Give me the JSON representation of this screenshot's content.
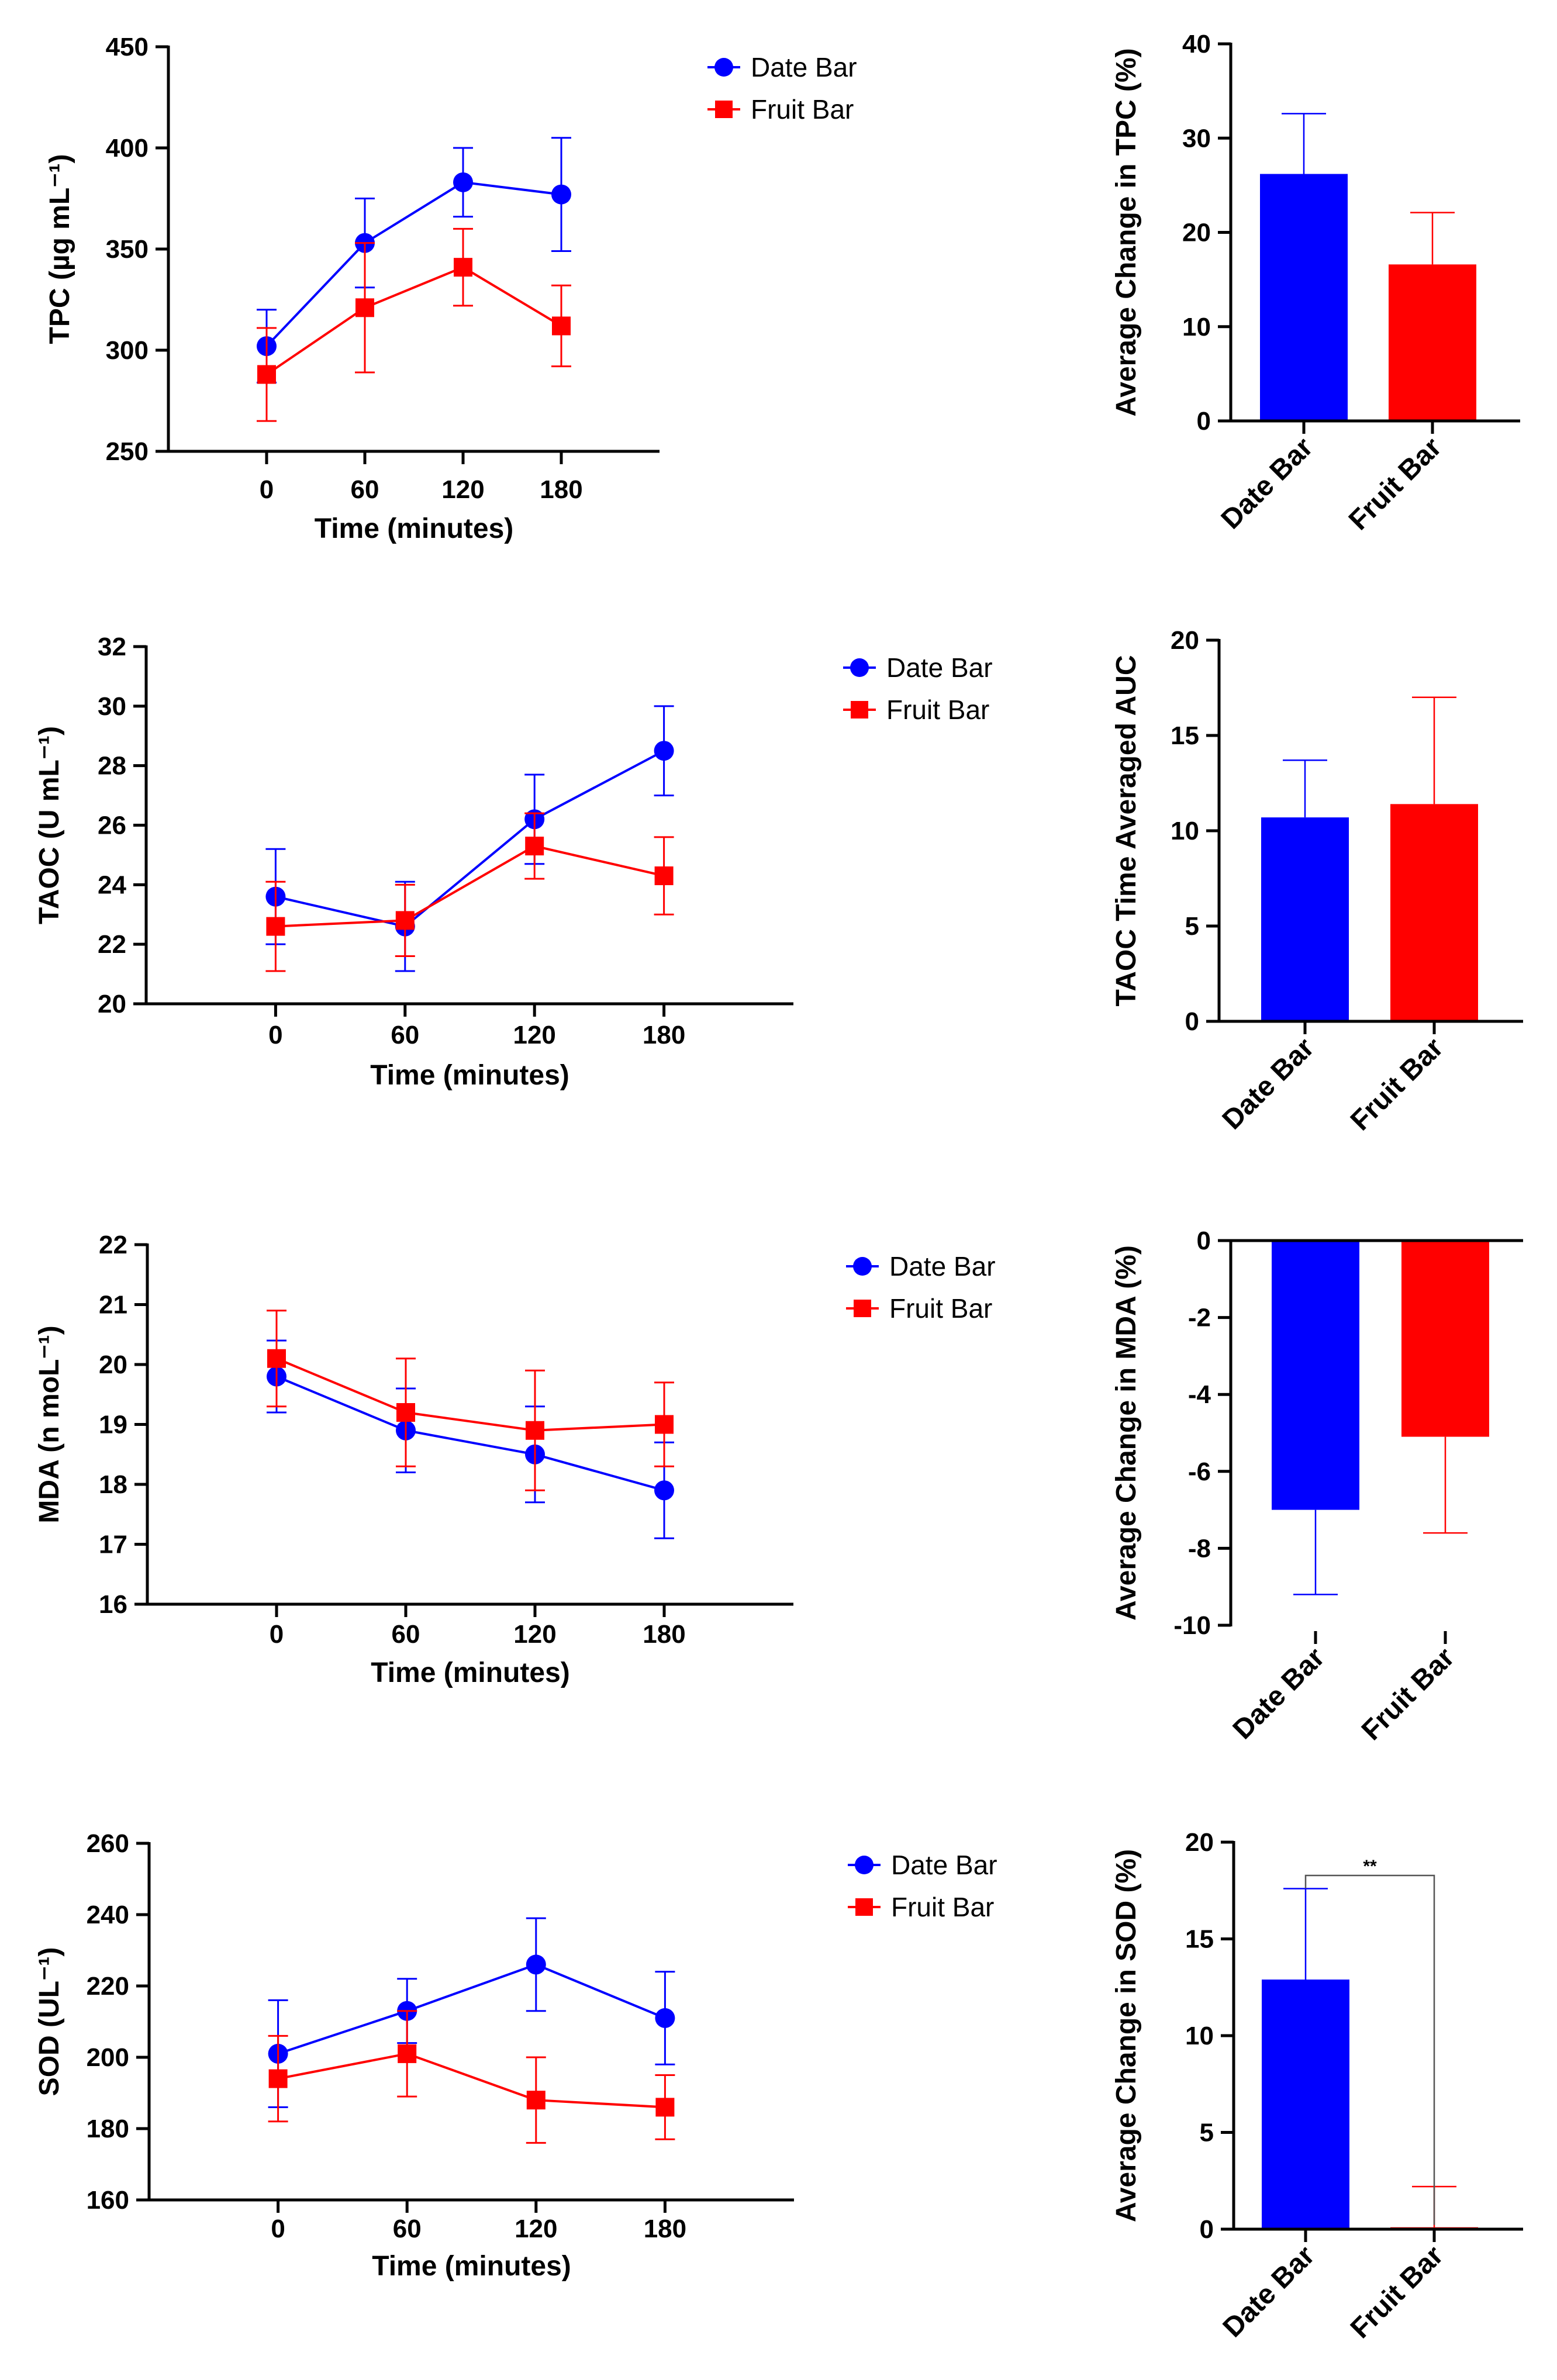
{
  "colors": {
    "date_bar": "#0000ff",
    "fruit_bar": "#ff0000",
    "axis": "#000000"
  },
  "chart_data": [
    {
      "id": "tpc-line",
      "type": "line",
      "xlabel": "Time (minutes)",
      "ylabel": "TPC (µg mL⁻¹)",
      "x": [
        0,
        60,
        120,
        180
      ],
      "xlim": [
        -60,
        240
      ],
      "ylim": [
        250,
        450
      ],
      "yticks": [
        250,
        300,
        350,
        400,
        450
      ],
      "legend_position": "top-right",
      "series": [
        {
          "name": "Date Bar",
          "color": "#0000ff",
          "marker": "circle",
          "values": [
            302,
            353,
            383,
            377
          ],
          "errors": [
            18,
            22,
            17,
            28
          ]
        },
        {
          "name": "Fruit Bar",
          "color": "#ff0000",
          "marker": "square",
          "values": [
            288,
            321,
            341,
            312
          ],
          "errors": [
            23,
            32,
            19,
            20
          ]
        }
      ]
    },
    {
      "id": "tpc-bar",
      "type": "bar",
      "ylabel": "Average Change in TPC (%)",
      "categories": [
        "Date Bar",
        "Fruit Bar"
      ],
      "values": [
        26.2,
        16.6
      ],
      "errors": [
        6.4,
        5.5
      ],
      "ylim": [
        0,
        40
      ],
      "yticks": [
        0,
        10,
        20,
        30,
        40
      ]
    },
    {
      "id": "taoc-line",
      "type": "line",
      "xlabel": "Time (minutes)",
      "ylabel": "TAOC  (U mL⁻¹)",
      "x": [
        0,
        60,
        120,
        180
      ],
      "xlim": [
        -60,
        240
      ],
      "ylim": [
        20,
        32
      ],
      "yticks": [
        20,
        22,
        24,
        26,
        28,
        30,
        32
      ],
      "legend_position": "top-right",
      "series": [
        {
          "name": "Date Bar",
          "color": "#0000ff",
          "marker": "circle",
          "values": [
            23.6,
            22.6,
            26.2,
            28.5
          ],
          "errors": [
            1.6,
            1.5,
            1.5,
            1.5
          ]
        },
        {
          "name": "Fruit Bar",
          "color": "#ff0000",
          "marker": "square",
          "values": [
            22.6,
            22.8,
            25.3,
            24.3
          ],
          "errors": [
            1.5,
            1.2,
            1.1,
            1.3
          ]
        }
      ]
    },
    {
      "id": "taoc-bar",
      "type": "bar",
      "ylabel": "TAOC Time Averaged AUC",
      "categories": [
        "Date Bar",
        "Fruit Bar"
      ],
      "values": [
        10.7,
        11.4
      ],
      "errors": [
        3.0,
        5.6
      ],
      "ylim": [
        0,
        20
      ],
      "yticks": [
        0,
        5,
        10,
        15,
        20
      ]
    },
    {
      "id": "mda-line",
      "type": "line",
      "xlabel": "Time (minutes)",
      "ylabel": "MDA (n moL⁻¹)",
      "x": [
        0,
        60,
        120,
        180
      ],
      "xlim": [
        -60,
        240
      ],
      "ylim": [
        16,
        22
      ],
      "yticks": [
        16,
        17,
        18,
        19,
        20,
        21,
        22
      ],
      "legend_position": "top-right",
      "series": [
        {
          "name": "Date Bar",
          "color": "#0000ff",
          "marker": "circle",
          "values": [
            19.8,
            18.9,
            18.5,
            17.9
          ],
          "errors": [
            0.6,
            0.7,
            0.8,
            0.8
          ]
        },
        {
          "name": "Fruit Bar",
          "color": "#ff0000",
          "marker": "square",
          "values": [
            20.1,
            19.2,
            18.9,
            19.0
          ],
          "errors": [
            0.8,
            0.9,
            1.0,
            0.7
          ]
        }
      ]
    },
    {
      "id": "mda-bar",
      "type": "bar",
      "ylabel": "Average Change in MDA (%)",
      "categories": [
        "Date Bar",
        "Fruit Bar"
      ],
      "values": [
        -7.0,
        -5.1
      ],
      "errors": [
        2.2,
        2.5
      ],
      "ylim": [
        -10,
        0
      ],
      "yticks": [
        -10,
        -8,
        -6,
        -4,
        -2,
        0
      ]
    },
    {
      "id": "sod-line",
      "type": "line",
      "xlabel": "Time (minutes)",
      "ylabel": "SOD (UL⁻¹)",
      "x": [
        0,
        60,
        120,
        180
      ],
      "xlim": [
        -60,
        240
      ],
      "ylim": [
        160,
        260
      ],
      "yticks": [
        160,
        180,
        200,
        220,
        240,
        260
      ],
      "legend_position": "top-right",
      "series": [
        {
          "name": "Date Bar",
          "color": "#0000ff",
          "marker": "circle",
          "values": [
            201,
            213,
            226,
            211
          ],
          "errors": [
            15,
            9,
            13,
            13
          ]
        },
        {
          "name": "Fruit Bar",
          "color": "#ff0000",
          "marker": "square",
          "values": [
            194,
            201,
            188,
            186
          ],
          "errors": [
            12,
            12,
            12,
            9
          ]
        }
      ]
    },
    {
      "id": "sod-bar",
      "type": "bar",
      "ylabel": "Average Change in SOD (%)",
      "categories": [
        "Date Bar",
        "Fruit Bar"
      ],
      "values": [
        12.9,
        0.1
      ],
      "errors": [
        4.7,
        2.1
      ],
      "ylim": [
        0,
        20
      ],
      "yticks": [
        0,
        5,
        10,
        15,
        20
      ],
      "annotation": "**"
    }
  ]
}
